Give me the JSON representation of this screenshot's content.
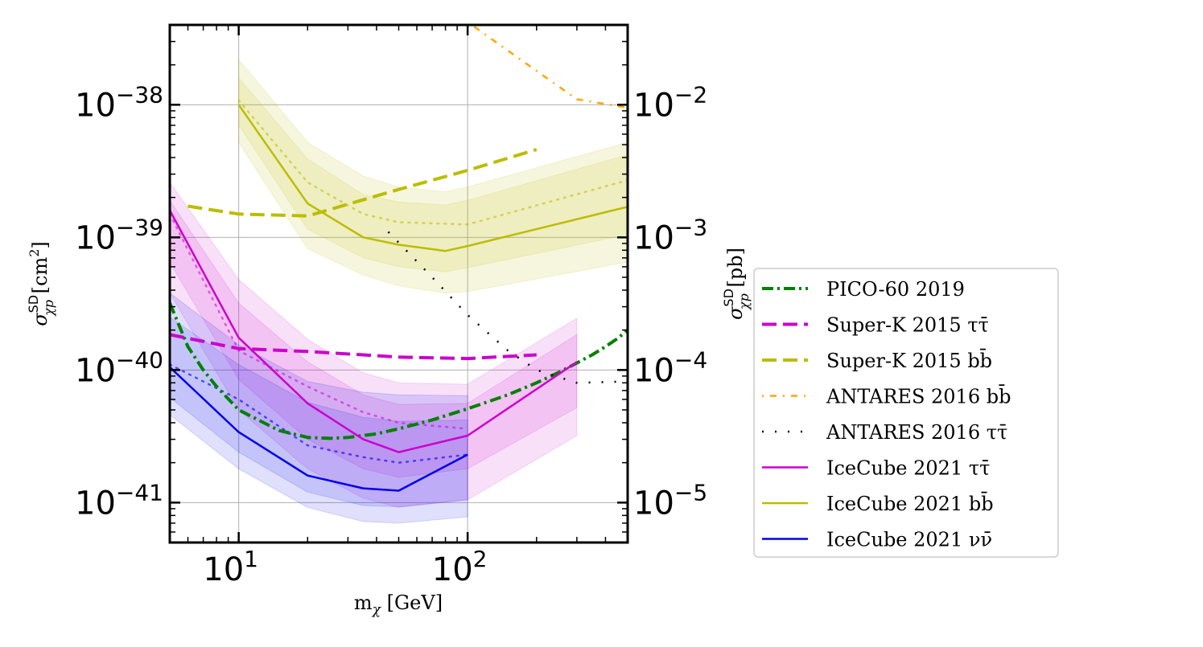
{
  "chart_data": {
    "type": "line",
    "xlabel_base": "m",
    "xlabel_sub": "χ",
    "xlabel_unit": " [GeV]",
    "ylabel_left_sym": "σ",
    "ylabel_left_sup": "SD",
    "ylabel_left_sub": "χp",
    "ylabel_left_unit": " [cm",
    "ylabel_left_unit_sup": "2",
    "ylabel_left_close": "]",
    "ylabel_right_sym": "σ",
    "ylabel_right_sup": "SD",
    "ylabel_right_sub": "χp",
    "ylabel_right_unit": " [pb]",
    "x_scale": "log",
    "y_scale": "log",
    "xlim": [
      5,
      500
    ],
    "ylim": [
      5e-42,
      4e-38
    ],
    "ylim_right_pb": [
      5e-06,
      0.04
    ],
    "grid": true,
    "legend_placement": "outside right",
    "x_ticks": [
      {
        "value": 10,
        "base": "10",
        "exp": "1"
      },
      {
        "value": 100,
        "base": "10",
        "exp": "2"
      }
    ],
    "y_ticks_left": [
      {
        "value": 1e-38,
        "base": "10",
        "exp": "−38"
      },
      {
        "value": 1e-39,
        "base": "10",
        "exp": "−39"
      },
      {
        "value": 1e-40,
        "base": "10",
        "exp": "−40"
      },
      {
        "value": 1e-41,
        "base": "10",
        "exp": "−41"
      }
    ],
    "y_ticks_right": [
      {
        "value_pb": 0.01,
        "base": "10",
        "exp": "−2"
      },
      {
        "value_pb": 0.001,
        "base": "10",
        "exp": "−3"
      },
      {
        "value_pb": 0.0001,
        "base": "10",
        "exp": "−4"
      },
      {
        "value_pb": 1e-05,
        "base": "10",
        "exp": "−5"
      }
    ],
    "bands": [
      {
        "color": "#bcbc00",
        "opacity": 0.13,
        "x": [
          10,
          20,
          35,
          50,
          80,
          100,
          500
        ],
        "lower": [
          5.2e-39,
          8.2e-40,
          5.2e-40,
          4.3e-40,
          3.8e-40,
          3.9e-40,
          6.5e-40
        ],
        "upper": [
          2.2e-38,
          5.2e-39,
          2.9e-39,
          2.4e-39,
          2.2e-39,
          2.4e-39,
          5.2e-39
        ]
      },
      {
        "color": "#bcbc00",
        "opacity": 0.13,
        "x": [
          10,
          20,
          35,
          50,
          80,
          100,
          500
        ],
        "lower": [
          7e-39,
          1.15e-39,
          7e-40,
          6e-40,
          5.5e-40,
          5.9e-40,
          1.05e-39
        ],
        "upper": [
          1.6e-38,
          3.9e-39,
          2.1e-39,
          1.85e-39,
          1.75e-39,
          1.9e-39,
          4.2e-39
        ]
      },
      {
        "color": "#cc00cc",
        "opacity": 0.12,
        "x": [
          5,
          10,
          20,
          35,
          50,
          100,
          300
        ],
        "lower": [
          3.8e-40,
          5e-41,
          1.8e-41,
          1.08e-41,
          9.2e-42,
          1.05e-41,
          3.2e-41
        ],
        "upper": [
          2.6e-39,
          4.8e-40,
          1.7e-40,
          9.5e-41,
          8e-41,
          7.8e-41,
          2.45e-40
        ]
      },
      {
        "color": "#cc00cc",
        "opacity": 0.12,
        "x": [
          5,
          10,
          20,
          35,
          50,
          100,
          300
        ],
        "lower": [
          6.5e-40,
          8.5e-41,
          3e-41,
          1.8e-41,
          1.55e-41,
          1.8e-41,
          5.2e-41
        ],
        "upper": [
          1.9e-39,
          3.2e-40,
          1.15e-40,
          6.5e-41,
          5.5e-41,
          5.6e-41,
          1.85e-40
        ]
      },
      {
        "color": "#0000ee",
        "opacity": 0.12,
        "x": [
          5,
          10,
          20,
          35,
          50,
          100
        ],
        "lower": [
          4.6e-41,
          1.8e-41,
          9.2e-42,
          7.2e-42,
          7e-42,
          7.8e-42
        ],
        "upper": [
          3.8e-40,
          1.55e-40,
          8.2e-41,
          6.8e-41,
          6.5e-41,
          6.4e-41
        ]
      },
      {
        "color": "#0000ee",
        "opacity": 0.12,
        "x": [
          5,
          10,
          20,
          35,
          50,
          100
        ],
        "lower": [
          6.2e-41,
          2.4e-41,
          1.2e-41,
          9.5e-42,
          9.3e-42,
          1.05e-41
        ],
        "upper": [
          2.5e-40,
          1.1e-40,
          5.7e-41,
          4.4e-41,
          4.1e-41,
          4.2e-41
        ]
      }
    ],
    "series": [
      {
        "name": "PICO-60 2019",
        "color": "#008000",
        "width": 4,
        "dash": "14,5,3,5",
        "x": [
          5,
          6,
          7,
          8,
          10,
          15,
          20,
          25,
          30,
          40,
          50,
          70,
          100,
          150,
          200,
          250,
          300,
          350,
          400,
          450,
          500
        ],
        "y": [
          3.2e-40,
          1.5e-40,
          1e-40,
          7.5e-41,
          5e-41,
          3.5e-41,
          3.1e-41,
          3.05e-41,
          3.1e-41,
          3.3e-41,
          3.6e-41,
          4.2e-41,
          5.1e-41,
          6.5e-41,
          8e-41,
          9.6e-41,
          1.13e-40,
          1.3e-40,
          1.5e-40,
          1.72e-40,
          2e-40
        ]
      },
      {
        "name": "Super-K 2015 ττ̄",
        "color": "#cc00cc",
        "width": 4,
        "dash": "18,8",
        "x": [
          5,
          10,
          20,
          50,
          100,
          200
        ],
        "y": [
          1.85e-40,
          1.45e-40,
          1.38e-40,
          1.25e-40,
          1.22e-40,
          1.3e-40
        ]
      },
      {
        "name": "Super-K 2015 bb̄",
        "color": "#bcbc00",
        "width": 4,
        "dash": "18,8",
        "x": [
          6,
          10,
          20,
          50,
          100,
          200
        ],
        "y": [
          1.72e-39,
          1.5e-39,
          1.45e-39,
          2.3e-39,
          3.2e-39,
          4.6e-39
        ]
      },
      {
        "name": "ANTARES 2016 bb̄",
        "color": "#ffa500",
        "width": 2.5,
        "dash": "2,8,8,8",
        "x": [
          100,
          200,
          300,
          500
        ],
        "y": [
          4.2e-38,
          1.8e-38,
          1.1e-38,
          9.5e-39
        ]
      },
      {
        "name": "ANTARES 2016 ττ̄",
        "color": "#000000",
        "width": 2.5,
        "dash": "2,14",
        "x": [
          45,
          70,
          100,
          150,
          200,
          300,
          500
        ],
        "y": [
          1.1e-39,
          5e-40,
          2.6e-40,
          1.4e-40,
          1e-40,
          8e-41,
          8.2e-41
        ]
      },
      {
        "name": "IceCube 2021 ττ̄",
        "color": "#cc00cc",
        "width": 2.5,
        "dash": "",
        "x": [
          5,
          10,
          20,
          35,
          50,
          100,
          300
        ],
        "y": [
          1.6e-39,
          1.75e-40,
          5.6e-41,
          3e-41,
          2.4e-41,
          3.2e-41,
          1.15e-40
        ]
      },
      {
        "name": "IceCube 2021 bb̄",
        "color": "#bcbc00",
        "width": 2.5,
        "dash": "",
        "x": [
          10,
          20,
          35,
          50,
          80,
          100,
          500
        ],
        "y": [
          1e-38,
          1.8e-39,
          1e-39,
          8.8e-40,
          7.9e-40,
          8.6e-40,
          1.7e-39
        ]
      },
      {
        "name": "IceCube 2021 νν̄",
        "color": "#0000ee",
        "width": 2.5,
        "dash": "",
        "x": [
          5,
          10,
          20,
          35,
          50,
          100
        ],
        "y": [
          1.05e-40,
          3.4e-41,
          1.6e-41,
          1.28e-41,
          1.23e-41,
          2.3e-41
        ]
      }
    ],
    "aux_lines": [
      {
        "color": "#bcbc00",
        "width": 2.5,
        "dash": "2,7",
        "opacity": 0.55,
        "x": [
          10,
          20,
          35,
          50,
          100,
          500
        ],
        "y": [
          1.08e-38,
          2.6e-39,
          1.5e-39,
          1.3e-39,
          1.25e-39,
          2.7e-39
        ]
      },
      {
        "color": "#cc00cc",
        "width": 2.5,
        "dash": "2,7",
        "opacity": 0.55,
        "x": [
          5,
          10,
          20,
          35,
          50,
          100
        ],
        "y": [
          1.5e-39,
          1.4e-40,
          7.5e-41,
          4.8e-41,
          4e-41,
          3.6e-41
        ]
      },
      {
        "color": "#0000ee",
        "width": 2.5,
        "dash": "2,7",
        "opacity": 0.6,
        "x": [
          5,
          10,
          20,
          35,
          50,
          100
        ],
        "y": [
          1.1e-40,
          6e-41,
          2.7e-41,
          2.2e-41,
          2e-41,
          2.3e-41
        ]
      }
    ],
    "legend": [
      {
        "label": "PICO-60 2019",
        "color": "#008000",
        "width": 4,
        "dash": "14,5,3,5"
      },
      {
        "label": "Super-K 2015 ττ̄",
        "color": "#cc00cc",
        "width": 4,
        "dash": "18,8"
      },
      {
        "label": "Super-K 2015 bb̄",
        "color": "#bcbc00",
        "width": 4,
        "dash": "18,8"
      },
      {
        "label": "ANTARES 2016 bb̄",
        "color": "#ffa500",
        "width": 2.5,
        "dash": "2,8,8,8"
      },
      {
        "label": "ANTARES 2016 ττ̄",
        "color": "#000000",
        "width": 2.5,
        "dash": "2,14"
      },
      {
        "label": "IceCube 2021 ττ̄",
        "color": "#cc00cc",
        "width": 2.5,
        "dash": ""
      },
      {
        "label": "IceCube 2021 bb̄",
        "color": "#bcbc00",
        "width": 2.5,
        "dash": ""
      },
      {
        "label": "IceCube 2021 νν̄",
        "color": "#0000ee",
        "width": 2.5,
        "dash": ""
      }
    ]
  }
}
